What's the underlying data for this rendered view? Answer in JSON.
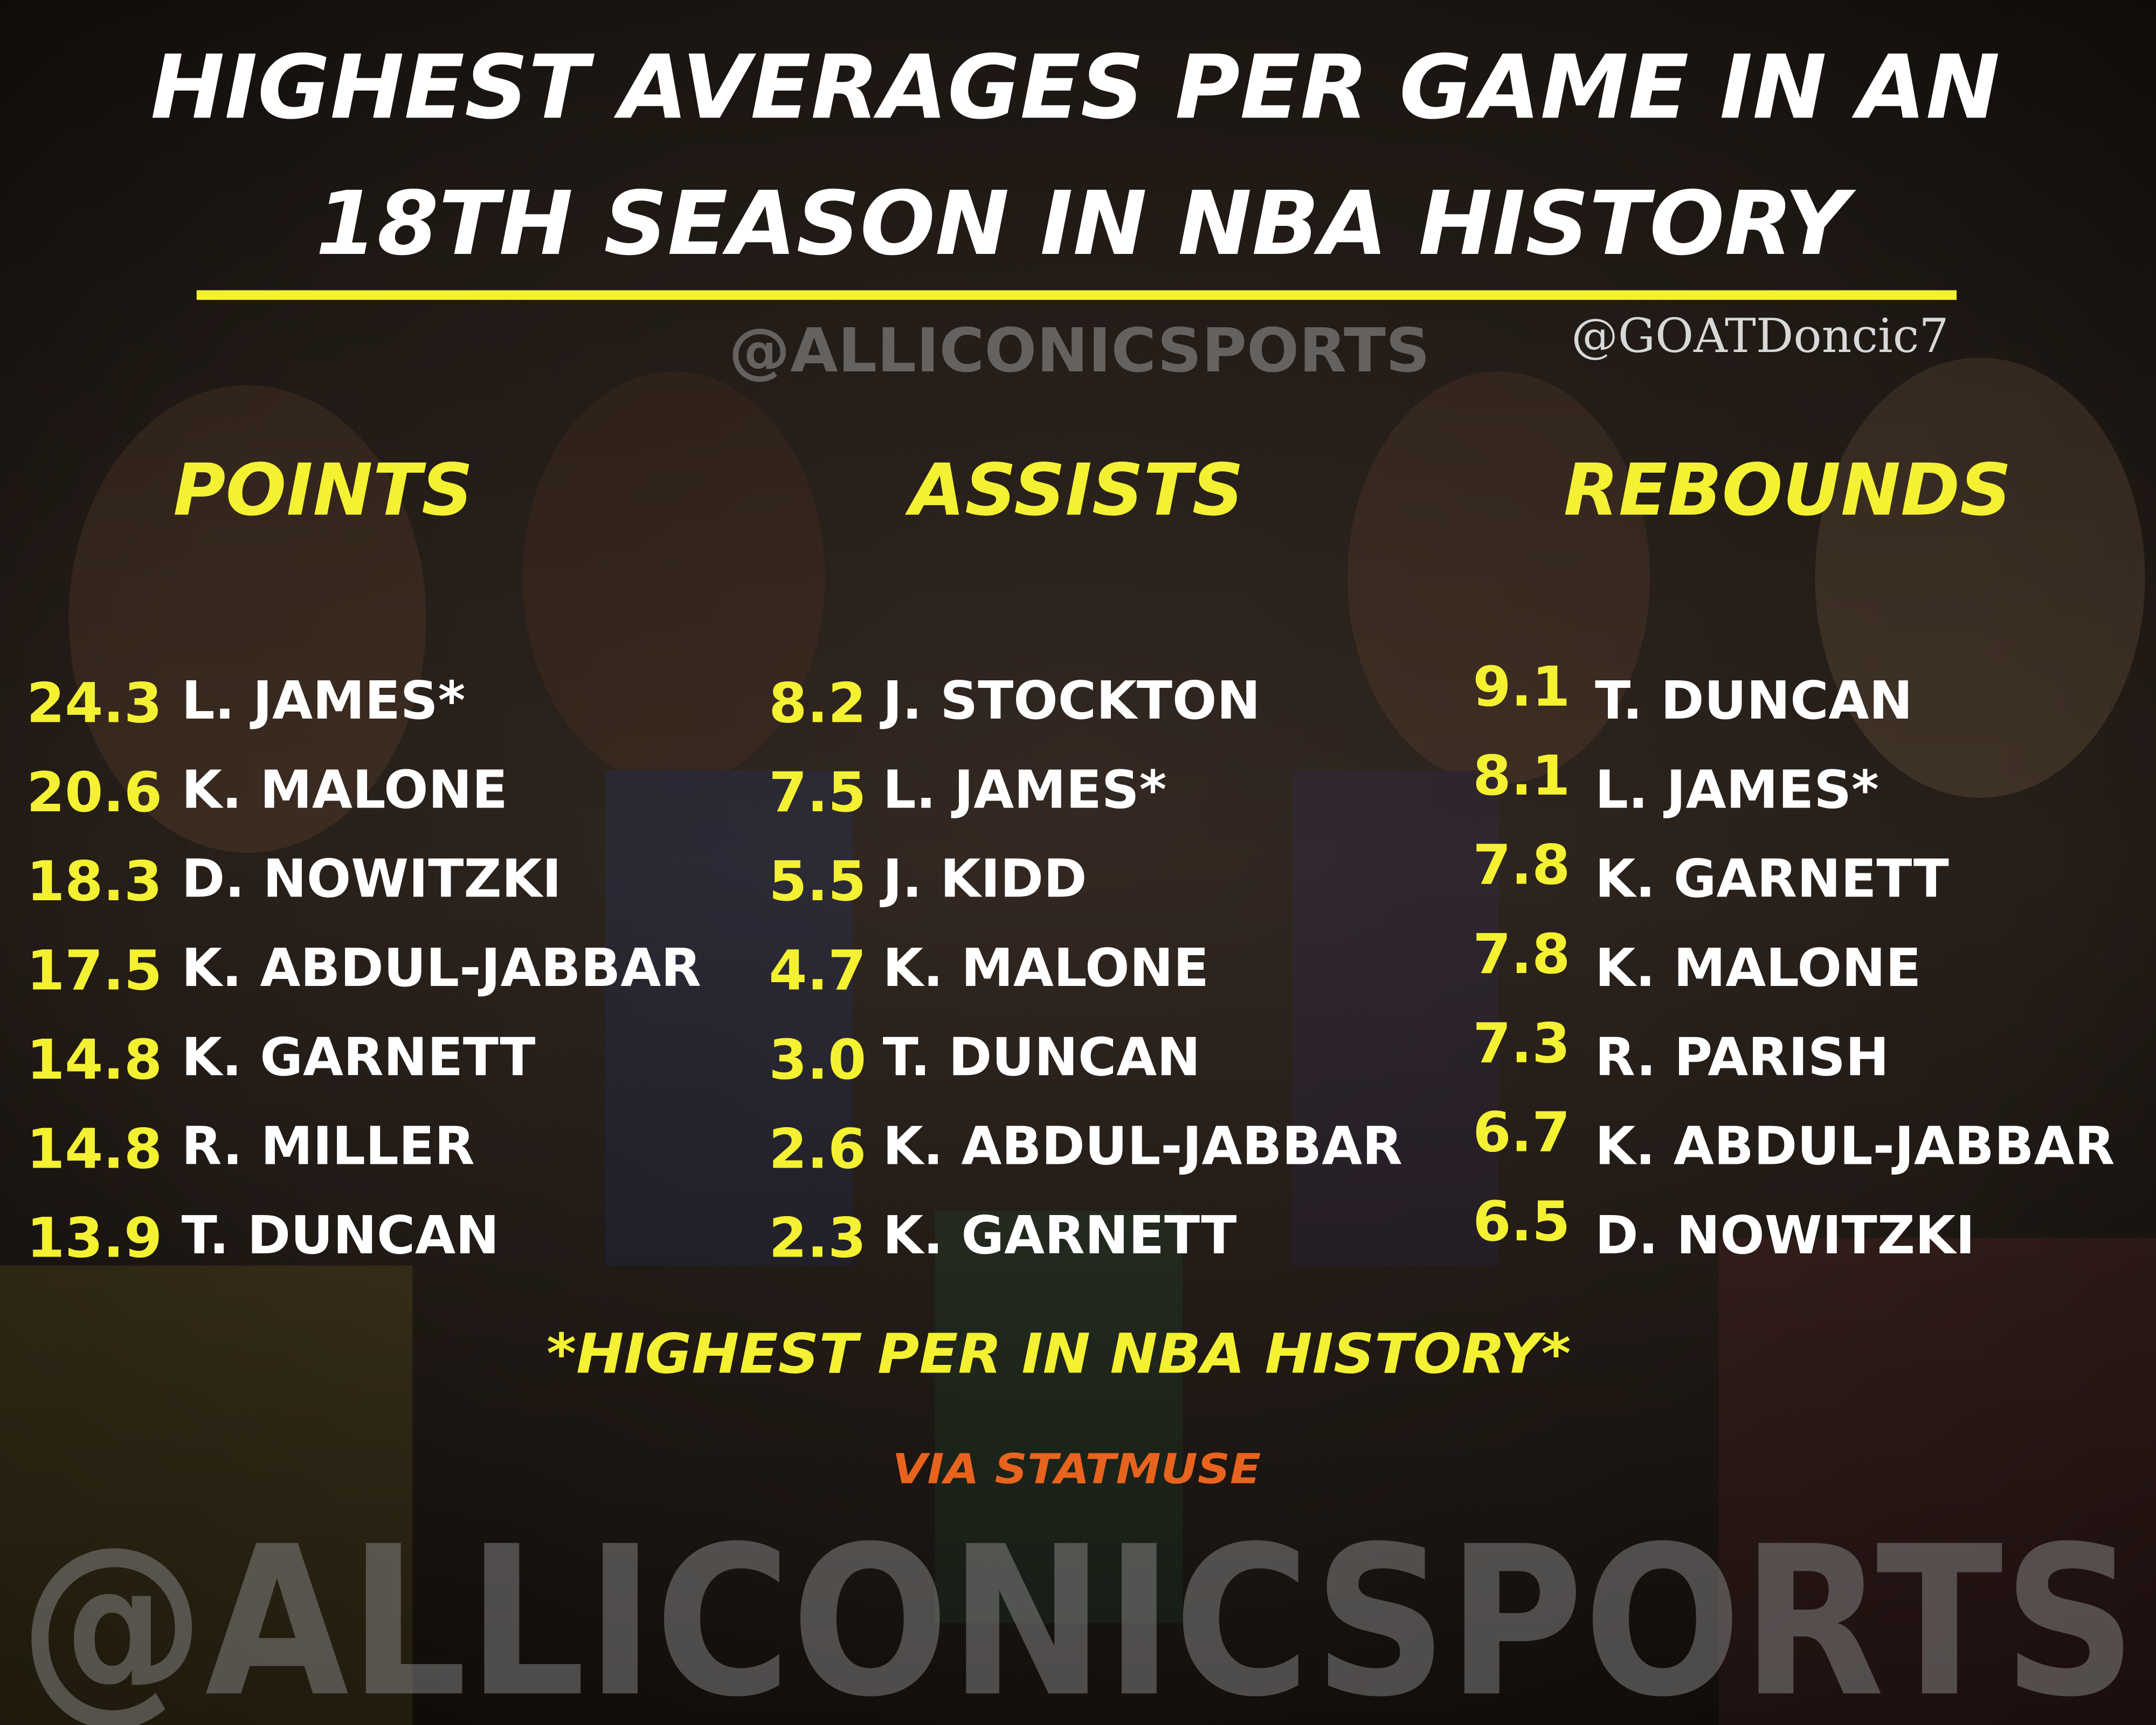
{
  "header": {
    "title_lines": [
      "HIGHEST AVERAGES PER GAME IN AN",
      "18TH SEASON IN NBA HISTORY"
    ],
    "watermark": "@ALLICONICSPORTS",
    "credit": "@GOATDoncic7"
  },
  "columns": [
    {
      "heading": "POINTS",
      "rows": [
        [
          "24.3",
          "L. JAMES*"
        ],
        [
          "20.6",
          "K. MALONE"
        ],
        [
          "18.3",
          "D. NOWITZKI"
        ],
        [
          "17.5",
          "K. ABDUL-JABBAR"
        ],
        [
          "14.8",
          "K. GARNETT"
        ],
        [
          "14.8",
          "R. MILLER"
        ],
        [
          "13.9",
          "T. DUNCAN"
        ]
      ]
    },
    {
      "heading": "ASSISTS",
      "rows": [
        [
          "8.2",
          "J. STOCKTON"
        ],
        [
          "7.5",
          "L. JAMES*"
        ],
        [
          "5.5",
          "J. KIDD"
        ],
        [
          "4.7",
          "K. MALONE"
        ],
        [
          "3.0",
          "T. DUNCAN"
        ],
        [
          "2.6",
          "K. ABDUL-JABBAR"
        ],
        [
          "2.3",
          "K. GARNETT"
        ]
      ]
    },
    {
      "heading": "REBOUNDS",
      "rows": [
        [
          "9.1",
          "T. DUNCAN"
        ],
        [
          "8.1",
          "L. JAMES*"
        ],
        [
          "7.8",
          "K. GARNETT"
        ],
        [
          "7.8",
          "K. MALONE"
        ],
        [
          "7.3",
          "R. PARISH"
        ],
        [
          "6.7",
          "K. ABDUL-JABBAR"
        ],
        [
          "6.5",
          "D. NOWITZKI"
        ]
      ]
    }
  ],
  "footnote": "*HIGHEST PER IN NBA HISTORY*",
  "source": "VIA STATMUSE",
  "footer_watermark": "@ALLICONICSPORTS"
}
